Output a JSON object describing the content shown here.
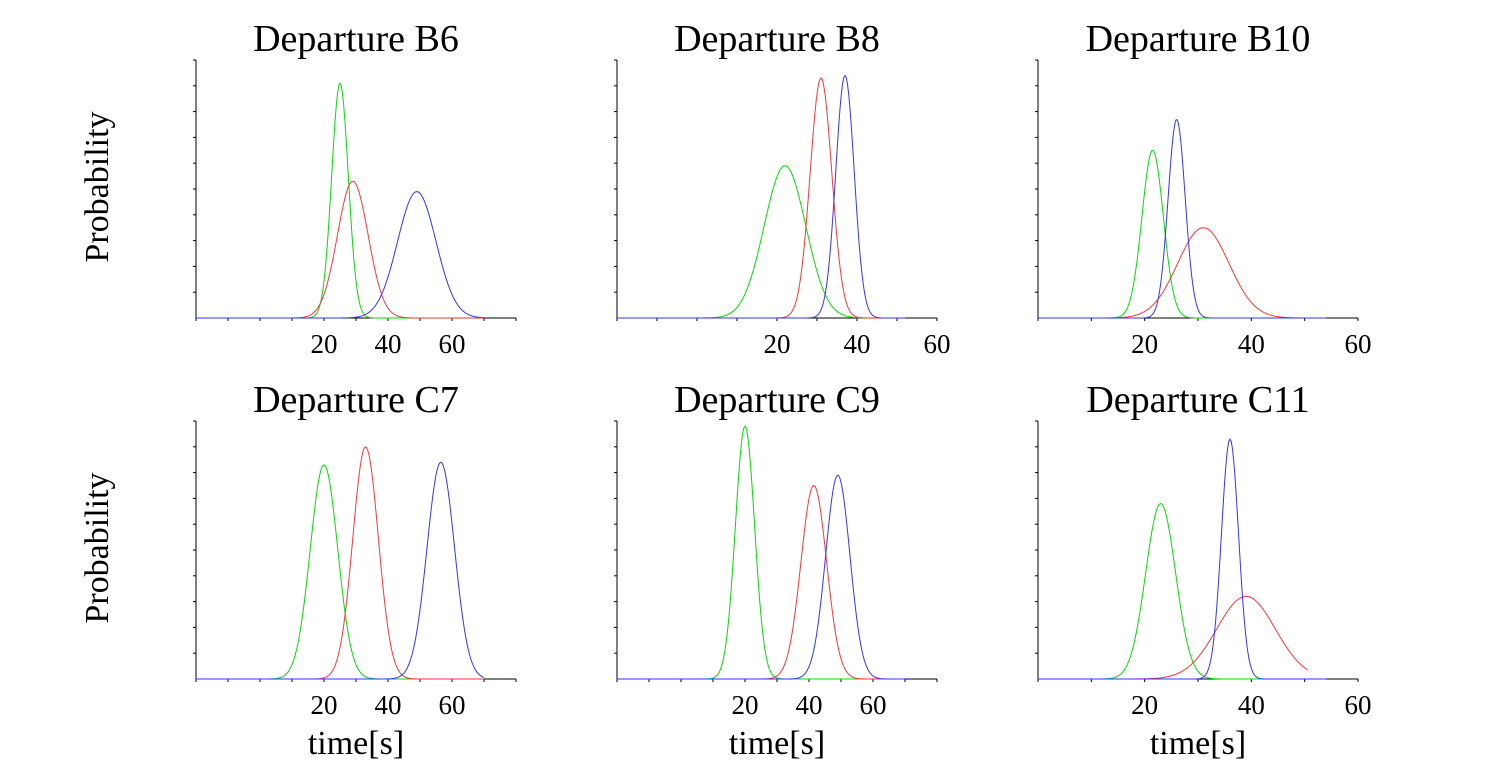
{
  "figure": {
    "y_axis_label": "Probability",
    "x_axis_label": "time[s]",
    "series_colors": {
      "green": "#00dd00",
      "red": "#ff3333",
      "blue": "#3333ff"
    }
  },
  "chart_data": [
    {
      "type": "line",
      "title": "Departure B6",
      "xlim": [
        -20,
        80
      ],
      "ylim": [
        0,
        1
      ],
      "xticks": [
        20,
        40,
        60
      ],
      "ylabel": "Probability",
      "xlabel": "",
      "series": [
        {
          "name": "green",
          "color": "#00dd00",
          "mu": 25,
          "sigma": 2.6,
          "peak": 0.91
        },
        {
          "name": "red",
          "color": "#ff3333",
          "mu": 29,
          "sigma": 4.8,
          "peak": 0.53
        },
        {
          "name": "blue",
          "color": "#3333ff",
          "mu": 49,
          "sigma": 6.0,
          "peak": 0.49
        }
      ]
    },
    {
      "type": "line",
      "title": "Departure B8",
      "xlim": [
        -20,
        60
      ],
      "ylim": [
        0,
        1
      ],
      "xticks": [
        20,
        40,
        60
      ],
      "ylabel": "",
      "xlabel": "",
      "series": [
        {
          "name": "green",
          "color": "#00dd00",
          "mu": 22,
          "sigma": 5.2,
          "peak": 0.59
        },
        {
          "name": "red",
          "color": "#ff3333",
          "mu": 31,
          "sigma": 2.7,
          "peak": 0.93
        },
        {
          "name": "blue",
          "color": "#3333ff",
          "mu": 37,
          "sigma": 2.3,
          "peak": 0.94
        }
      ]
    },
    {
      "type": "line",
      "title": "Departure B10",
      "xlim": [
        0,
        60
      ],
      "ylim": [
        0,
        1
      ],
      "xticks": [
        20,
        40,
        60
      ],
      "ylabel": "",
      "xlabel": "",
      "series": [
        {
          "name": "green",
          "color": "#00dd00",
          "mu": 21.5,
          "sigma": 2.0,
          "peak": 0.65
        },
        {
          "name": "red",
          "color": "#ff3333",
          "mu": 31,
          "sigma": 4.8,
          "peak": 0.35
        },
        {
          "name": "blue",
          "color": "#3333ff",
          "mu": 26,
          "sigma": 1.6,
          "peak": 0.77
        }
      ]
    },
    {
      "type": "line",
      "title": "Departure C7",
      "xlim": [
        -20,
        80
      ],
      "ylim": [
        0,
        1
      ],
      "xticks": [
        20,
        40,
        60
      ],
      "ylabel": "Probability",
      "xlabel": "time[s]",
      "series": [
        {
          "name": "green",
          "color": "#00dd00",
          "mu": 20,
          "sigma": 4.3,
          "peak": 0.83
        },
        {
          "name": "red",
          "color": "#ff3333",
          "mu": 33,
          "sigma": 4.0,
          "peak": 0.9
        },
        {
          "name": "blue",
          "color": "#3333ff",
          "mu": 56.5,
          "sigma": 4.3,
          "peak": 0.84
        }
      ]
    },
    {
      "type": "line",
      "title": "Departure C9",
      "xlim": [
        -20,
        80
      ],
      "ylim": [
        0,
        1
      ],
      "xticks": [
        20,
        40,
        60
      ],
      "ylabel": "",
      "xlabel": "time[s]",
      "series": [
        {
          "name": "green",
          "color": "#00dd00",
          "mu": 20,
          "sigma": 3.0,
          "peak": 0.98
        },
        {
          "name": "red",
          "color": "#ff3333",
          "mu": 41.5,
          "sigma": 4.0,
          "peak": 0.75
        },
        {
          "name": "blue",
          "color": "#3333ff",
          "mu": 49,
          "sigma": 3.8,
          "peak": 0.79
        }
      ]
    },
    {
      "type": "line",
      "title": "Departure C11",
      "xlim": [
        0,
        60
      ],
      "ylim": [
        0,
        1
      ],
      "xticks": [
        20,
        40,
        60
      ],
      "ylabel": "",
      "xlabel": "time[s]",
      "series": [
        {
          "name": "green",
          "color": "#00dd00",
          "mu": 23,
          "sigma": 2.8,
          "peak": 0.68
        },
        {
          "name": "red",
          "color": "#ff3333",
          "mu": 39,
          "sigma": 5.5,
          "peak": 0.32,
          "xmax": 50.5
        },
        {
          "name": "blue",
          "color": "#3333ff",
          "mu": 36,
          "sigma": 1.6,
          "peak": 0.93
        }
      ]
    }
  ]
}
